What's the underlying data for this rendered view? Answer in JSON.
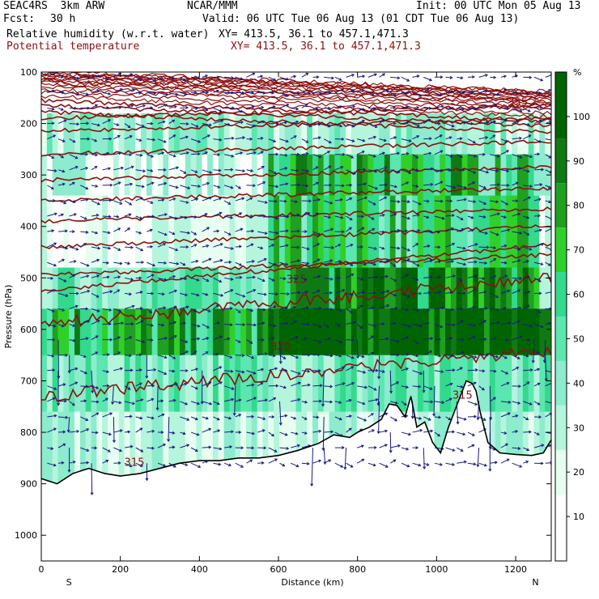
{
  "header": {
    "model": "SEAC4RS  3km ARW",
    "center": "NCAR/MMM",
    "init": "Init: 00 UTC Mon 05 Aug 13",
    "fcst_label": "Fcst:",
    "fcst_value": "30 h",
    "valid": "Valid: 06 UTC Tue 06 Aug 13 (01 CDT Tue 06 Aug 13)",
    "field1": "Relative humidity (w.r.t. water)",
    "field1_xy": "XY= 413.5, 36.1 to 457.1,471.3",
    "field2": "Potential temperature",
    "field2_xy": "XY= 413.5, 36.1 to 457.1,471.3"
  },
  "colors": {
    "rh_levels": [
      "#ffffff",
      "#e6fff0",
      "#b4f5dc",
      "#8ceccd",
      "#5ce6b0",
      "#33d98c",
      "#30d02a",
      "#1fa020",
      "#0f7a14",
      "#006400"
    ],
    "theta": "#8b1010",
    "wind": "#1a1a80",
    "terrain": "#000000"
  },
  "chart_data": {
    "type": "heatmap",
    "title": "Relative humidity (w.r.t. water) / Potential temperature cross-section",
    "xlabel": "Distance (km)",
    "ylabel": "Pressure (hPa)",
    "xlim": [
      0,
      1290
    ],
    "ylim": [
      1050,
      100
    ],
    "x_ticks": [
      0,
      200,
      400,
      600,
      800,
      1000,
      1200
    ],
    "y_ticks": [
      100,
      200,
      300,
      400,
      500,
      600,
      700,
      800,
      900,
      1000
    ],
    "end_labels": {
      "left": "S",
      "right": "N"
    },
    "colorbar": {
      "unit": "%",
      "ticks": [
        10,
        20,
        30,
        40,
        50,
        60,
        70,
        80,
        90,
        100
      ],
      "range": [
        0,
        110
      ]
    },
    "theta_contours": [
      {
        "label": "355",
        "label_x": 1180,
        "label_p": 165,
        "p": [
          98,
          100,
          102,
          103,
          105,
          107,
          108,
          111,
          113,
          116,
          118,
          121,
          124,
          127,
          131,
          135,
          138,
          141,
          145,
          149,
          153,
          157,
          161,
          166,
          170,
          175,
          180,
          185,
          190,
          195,
          200,
          205,
          210
        ]
      },
      {
        "label": "325",
        "label_x": 620,
        "label_p": 510
      },
      {
        "label": "320",
        "label_x": 580,
        "label_p": 640
      },
      {
        "label": "315",
        "label_x": 1040,
        "label_p": 735
      },
      {
        "label": "315",
        "label_x": 210,
        "label_p": 865
      }
    ],
    "terrain_p": [
      [
        0,
        890
      ],
      [
        40,
        900
      ],
      [
        80,
        880
      ],
      [
        120,
        870
      ],
      [
        160,
        880
      ],
      [
        200,
        885
      ],
      [
        250,
        880
      ],
      [
        300,
        870
      ],
      [
        350,
        860
      ],
      [
        400,
        855
      ],
      [
        450,
        855
      ],
      [
        500,
        850
      ],
      [
        550,
        850
      ],
      [
        600,
        845
      ],
      [
        650,
        835
      ],
      [
        700,
        822
      ],
      [
        740,
        805
      ],
      [
        780,
        810
      ],
      [
        800,
        800
      ],
      [
        830,
        790
      ],
      [
        860,
        775
      ],
      [
        880,
        745
      ],
      [
        900,
        748
      ],
      [
        920,
        770
      ],
      [
        935,
        730
      ],
      [
        950,
        790
      ],
      [
        970,
        780
      ],
      [
        990,
        820
      ],
      [
        1010,
        840
      ],
      [
        1030,
        790
      ],
      [
        1045,
        760
      ],
      [
        1060,
        730
      ],
      [
        1075,
        700
      ],
      [
        1090,
        705
      ],
      [
        1100,
        720
      ],
      [
        1110,
        760
      ],
      [
        1130,
        820
      ],
      [
        1160,
        840
      ],
      [
        1200,
        843
      ],
      [
        1240,
        845
      ],
      [
        1270,
        840
      ],
      [
        1290,
        815
      ]
    ],
    "wind_vectors_note": "",
    "annotations": []
  }
}
